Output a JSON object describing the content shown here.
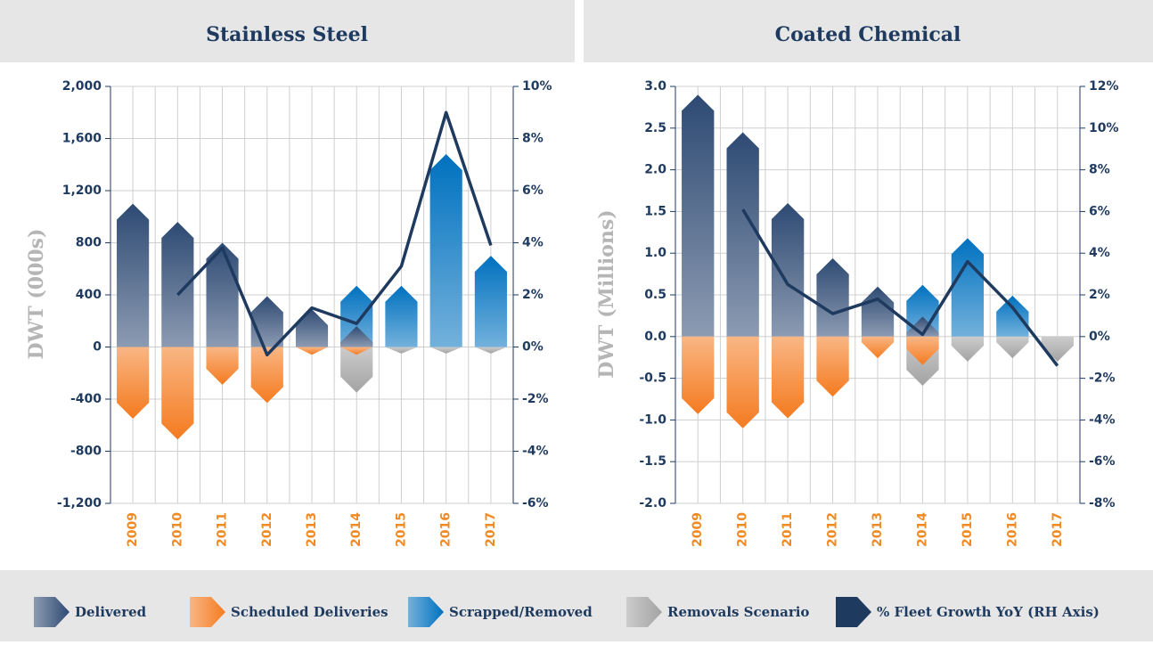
{
  "chart_data": [
    {
      "type": "bar",
      "title": "Stainless Steel",
      "y_label": "DWT (000s)",
      "categories": [
        "2009",
        "2010",
        "2011",
        "2012",
        "2013",
        "2014",
        "2015",
        "2016",
        "2017"
      ],
      "series": [
        {
          "name": "Delivered",
          "color": "#2e4a73",
          "values": [
            1100,
            960,
            800,
            390,
            290,
            160,
            null,
            null,
            null
          ]
        },
        {
          "name": "Scheduled Deliveries",
          "color": "#f47b20",
          "values": [
            -550,
            -710,
            -290,
            -430,
            -60,
            -60,
            null,
            null,
            null
          ]
        },
        {
          "name": "Scrapped/Removed",
          "color": "#0071bf",
          "values": [
            null,
            null,
            null,
            null,
            null,
            470,
            470,
            1480,
            700
          ]
        },
        {
          "name": "Removals Scenario",
          "color": "#a3a3a3",
          "values": [
            null,
            null,
            null,
            null,
            null,
            -350,
            -50,
            -50,
            -50
          ]
        },
        {
          "name": "% Fleet Growth YoY (RH Axis)",
          "color": "#1f3a5f",
          "type": "line",
          "axis": "y2",
          "values": [
            null,
            2.0,
            3.8,
            -0.3,
            1.5,
            0.9,
            3.1,
            9.0,
            3.9
          ]
        }
      ],
      "ylim": [
        -1200,
        2000
      ],
      "yticks": [
        {
          "value": -1200,
          "label": "-1,200"
        },
        -800,
        -400,
        0,
        400,
        800,
        {
          "value": 1200,
          "label": "1,200"
        },
        {
          "value": 1600,
          "label": "1,600"
        },
        {
          "value": 2000,
          "label": "2,000"
        }
      ],
      "y2lim": [
        -6,
        10
      ],
      "y2ticks": [
        {
          "value": -6,
          "label": "-6%"
        },
        {
          "value": -4,
          "label": "-4%"
        },
        {
          "value": -2,
          "label": "-2%"
        },
        {
          "value": 0,
          "label": "0%"
        },
        {
          "value": 2,
          "label": "2%"
        },
        {
          "value": 4,
          "label": "4%"
        },
        {
          "value": 6,
          "label": "6%"
        },
        {
          "value": 8,
          "label": "8%"
        },
        {
          "value": 10,
          "label": "10%"
        }
      ],
      "grid": true
    },
    {
      "type": "bar",
      "title": "Coated Chemical",
      "y_label": "DWT (Millions)",
      "categories": [
        "2009",
        "2010",
        "2011",
        "2012",
        "2013",
        "2014",
        "2015",
        "2016",
        "2017"
      ],
      "series": [
        {
          "name": "Delivered",
          "color": "#2e4a73",
          "values": [
            2.9,
            2.45,
            1.6,
            0.94,
            0.6,
            0.24,
            null,
            null,
            null
          ]
        },
        {
          "name": "Scheduled Deliveries",
          "color": "#f47b20",
          "values": [
            -0.93,
            -1.1,
            -0.98,
            -0.72,
            -0.26,
            -0.34,
            null,
            null,
            null
          ]
        },
        {
          "name": "Scrapped/Removed",
          "color": "#0071bf",
          "values": [
            null,
            null,
            null,
            null,
            null,
            0.62,
            1.18,
            0.49,
            null
          ]
        },
        {
          "name": "Removals Scenario",
          "color": "#a3a3a3",
          "values": [
            null,
            null,
            null,
            null,
            null,
            -0.59,
            -0.3,
            -0.26,
            -0.3
          ]
        },
        {
          "name": "% Fleet Growth YoY (RH Axis)",
          "color": "#1f3a5f",
          "type": "line",
          "axis": "y2",
          "values": [
            null,
            6.1,
            2.5,
            1.1,
            1.8,
            0.1,
            3.6,
            1.4,
            -1.4
          ]
        }
      ],
      "ylim": [
        -2,
        3
      ],
      "yticks": [
        {
          "value": -2,
          "label": "-2.0"
        },
        -1.5,
        {
          "value": -1,
          "label": "-1.0"
        },
        -0.5,
        {
          "value": 0,
          "label": "0.0"
        },
        0.5,
        {
          "value": 1,
          "label": "1.0"
        },
        1.5,
        {
          "value": 2,
          "label": "2.0"
        },
        2.5,
        {
          "value": 3,
          "label": "3.0"
        }
      ],
      "y2lim": [
        -8,
        12
      ],
      "y2ticks": [
        {
          "value": -8,
          "label": "-8%"
        },
        {
          "value": -6,
          "label": "-6%"
        },
        {
          "value": -4,
          "label": "-4%"
        },
        {
          "value": -2,
          "label": "-2%"
        },
        {
          "value": 0,
          "label": "0%"
        },
        {
          "value": 2,
          "label": "2%"
        },
        {
          "value": 4,
          "label": "4%"
        },
        {
          "value": 6,
          "label": "6%"
        },
        {
          "value": 8,
          "label": "8%"
        },
        {
          "value": 10,
          "label": "10%"
        },
        {
          "value": 12,
          "label": "12%"
        }
      ],
      "grid": true
    }
  ]
}
